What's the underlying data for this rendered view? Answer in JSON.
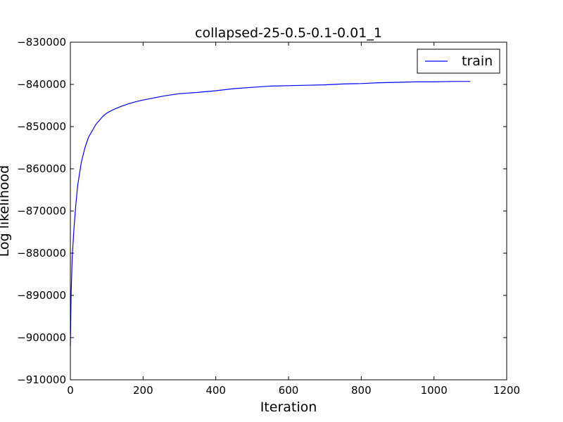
{
  "chart_data": {
    "type": "line",
    "title": "collapsed-25-0.5-0.1-0.01_1",
    "xlabel": "Iteration",
    "ylabel": "Log likelihood",
    "xlim": [
      0,
      1200
    ],
    "ylim": [
      -910000,
      -830000
    ],
    "x_ticks": [
      "0",
      "200",
      "400",
      "600",
      "800",
      "1000",
      "1200"
    ],
    "y_ticks": [
      "−830000",
      "−840000",
      "−850000",
      "−860000",
      "−870000",
      "−880000",
      "−890000",
      "−900000",
      "−910000"
    ],
    "grid": false,
    "legend_position": "top-right",
    "series": [
      {
        "name": "train",
        "color": "#0000ff",
        "x": [
          0,
          2,
          5,
          10,
          15,
          20,
          30,
          40,
          50,
          60,
          70,
          80,
          90,
          100,
          120,
          140,
          160,
          180,
          200,
          230,
          260,
          300,
          350,
          400,
          450,
          500,
          550,
          600,
          650,
          700,
          750,
          800,
          850,
          900,
          950,
          1000,
          1050,
          1100
        ],
        "y": [
          -902000,
          -890000,
          -881000,
          -874000,
          -868500,
          -864000,
          -858500,
          -855000,
          -852500,
          -851000,
          -849500,
          -848500,
          -847500,
          -846800,
          -845900,
          -845200,
          -844600,
          -844100,
          -843700,
          -843200,
          -842700,
          -842200,
          -841900,
          -841500,
          -841000,
          -840700,
          -840400,
          -840300,
          -840200,
          -840100,
          -839900,
          -839800,
          -839600,
          -839500,
          -839400,
          -839400,
          -839300,
          -839300
        ]
      }
    ]
  }
}
